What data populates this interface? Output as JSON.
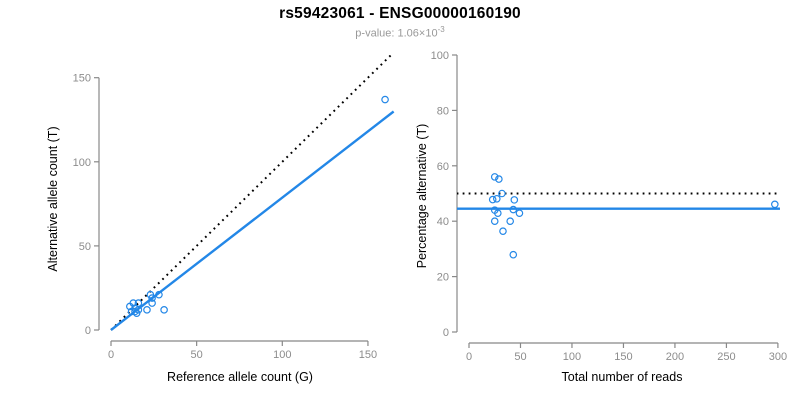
{
  "header": {
    "title": "rs59423061 - ENSG00000160190",
    "subtitle_prefix": "p-value: 1.06×10",
    "subtitle_exponent": "-3"
  },
  "style": {
    "accent_blue": "#2387E7",
    "axis_gray": "#888888",
    "tick_label_gray": "#8c8c8c",
    "title_black": "#000000",
    "subtitle_gray": "#999999"
  },
  "chart_data": [
    {
      "type": "scatter",
      "panel": "left",
      "xlabel": "Reference allele count (G)",
      "ylabel": "Alternative allele count (T)",
      "xticks": [
        0,
        50,
        100,
        150
      ],
      "yticks": [
        0,
        50,
        100,
        150
      ],
      "xlim": [
        0,
        165
      ],
      "ylim": [
        0,
        165
      ],
      "grid": false,
      "points": [
        [
          11,
          14
        ],
        [
          13,
          16
        ],
        [
          16,
          16
        ],
        [
          14,
          13
        ],
        [
          12,
          11
        ],
        [
          14,
          11
        ],
        [
          16,
          12
        ],
        [
          15,
          10
        ],
        [
          21,
          12
        ],
        [
          23,
          21
        ],
        [
          24,
          19
        ],
        [
          28,
          21
        ],
        [
          24,
          16
        ],
        [
          31,
          12
        ],
        [
          160,
          137
        ]
      ],
      "lines": [
        {
          "name": "identity-line",
          "style": "dotted",
          "color": "#000000",
          "x1": 0,
          "y1": 0,
          "x2": 170,
          "y2": 170
        },
        {
          "name": "fit-line",
          "style": "solid",
          "color": "#2387E7",
          "x1": 0,
          "y1": 0,
          "x2": 165,
          "y2": 129.9
        }
      ]
    },
    {
      "type": "scatter",
      "panel": "right",
      "xlabel": "Total number of reads",
      "ylabel": "Percentage alternative (T)",
      "xticks": [
        0,
        50,
        100,
        150,
        200,
        250,
        300
      ],
      "yticks": [
        0,
        20,
        40,
        60,
        80,
        100
      ],
      "xlim": [
        0,
        310
      ],
      "ylim": [
        0,
        100
      ],
      "grid": false,
      "points": [
        [
          25,
          56.0
        ],
        [
          29,
          55.2
        ],
        [
          32,
          50.0
        ],
        [
          27,
          48.1
        ],
        [
          23,
          47.8
        ],
        [
          25,
          44.0
        ],
        [
          28,
          42.9
        ],
        [
          25,
          40.0
        ],
        [
          33,
          36.4
        ],
        [
          44,
          47.7
        ],
        [
          43,
          44.2
        ],
        [
          49,
          42.9
        ],
        [
          40,
          40.0
        ],
        [
          43,
          27.9
        ],
        [
          297,
          46.1
        ]
      ],
      "lines": [
        {
          "name": "expected-50pct-line",
          "style": "dotted",
          "color": "#000000",
          "x1": -12,
          "y1": 50,
          "x2": 302,
          "y2": 50
        },
        {
          "name": "mean-pct-line",
          "style": "solid",
          "color": "#2387E7",
          "x1": -12,
          "y1": 44.5,
          "x2": 302,
          "y2": 44.5
        }
      ]
    }
  ]
}
